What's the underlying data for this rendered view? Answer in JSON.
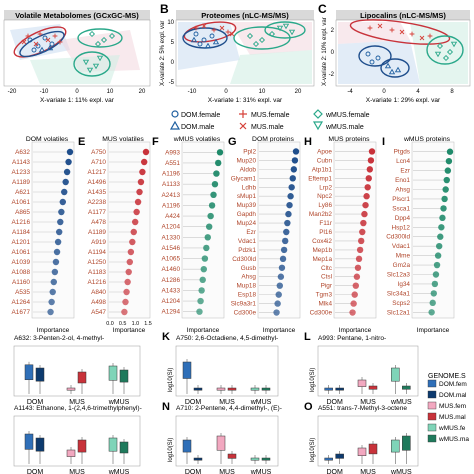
{
  "figure": {
    "panel_letters": [
      "B",
      "C",
      "E",
      "F",
      "G",
      "H",
      "I",
      "K",
      "L",
      "N",
      "O"
    ],
    "xlabel_importance": "Importance",
    "ylabel_si": "log10(SI)"
  },
  "pca_panels": [
    {
      "id": "A",
      "title": "Volatile Metabolomes (GCxGC-MS)",
      "xlabel": "X-variate 1: 11% expl. var",
      "ylabel": "",
      "xticks": [
        "-20",
        "-10",
        "0",
        "10",
        "20"
      ],
      "yticks": []
    },
    {
      "id": "B",
      "title": "Proteomes (nLC-MS/MS)",
      "xlabel": "X-variate 1: 31% expl. var",
      "ylabel": "X-variate 2: 5% expl. var",
      "xticks": [
        "-10",
        "0",
        "10",
        "20"
      ],
      "yticks": [
        "-5",
        "0",
        "5",
        "10"
      ]
    },
    {
      "id": "C",
      "title": "Lipocalins (nLC-MS/MS)",
      "xlabel": "X-variate 1: 29% expl. var",
      "ylabel": "X-variate 2: 10% expl. var",
      "xticks": [
        "-4",
        "0",
        "4",
        "8"
      ],
      "yticks": [
        "-2",
        "0",
        "2"
      ]
    }
  ],
  "legend_groups": [
    {
      "label": "DOM.female",
      "symbol": "circle",
      "color": "#1f5fa0"
    },
    {
      "label": "DOM.male",
      "symbol": "triangle",
      "color": "#1f5fa0"
    },
    {
      "label": "MUS.female",
      "symbol": "plus",
      "color": "#d6423a"
    },
    {
      "label": "MUS.male",
      "symbol": "x",
      "color": "#d6423a"
    },
    {
      "label": "wMUS.female",
      "symbol": "diamond",
      "color": "#2aa88a"
    },
    {
      "label": "wMUS.male",
      "symbol": "triangle-down",
      "color": "#2aa88a"
    }
  ],
  "chart_data": [
    {
      "type": "scatter",
      "panel": "D",
      "title": "DOM volatiles",
      "color": "#1f4e8c",
      "xlabel": "Importance",
      "xticks": [],
      "labels": [
        "A632",
        "A1143",
        "A1233",
        "A1189",
        "A621",
        "A1061",
        "A865",
        "A1216",
        "A1184",
        "A1201",
        "A1061",
        "A1039",
        "A1088",
        "A1160",
        "A535",
        "A1264",
        "A1677"
      ],
      "values": [
        1.0,
        0.96,
        0.92,
        0.88,
        0.84,
        0.8,
        0.76,
        0.73,
        0.7,
        0.67,
        0.64,
        0.61,
        0.58,
        0.55,
        0.52,
        0.49,
        0.46
      ]
    },
    {
      "type": "scatter",
      "panel": "E",
      "title": "MUS volatiles",
      "color": "#c8323a",
      "xlabel": "Importance",
      "xticks": [
        "0.0",
        "0.5",
        "1.0",
        "1.5"
      ],
      "labels": [
        "A750",
        "A710",
        "A1217",
        "A1496",
        "A1435",
        "A2238",
        "A1177",
        "A478",
        "A1189",
        "A919",
        "A1194",
        "A1250",
        "A1183",
        "A1216",
        "A840",
        "A498",
        "A547"
      ],
      "values": [
        1.0,
        0.95,
        0.9,
        0.86,
        0.82,
        0.78,
        0.74,
        0.7,
        0.66,
        0.62,
        0.58,
        0.55,
        0.52,
        0.49,
        0.46,
        0.43,
        0.4
      ]
    },
    {
      "type": "scatter",
      "panel": "F",
      "title": "wMUS volatiles",
      "color": "#1f8a6a",
      "xlabel": "Importance",
      "xticks": [],
      "labels": [
        "A993",
        "A551",
        "A1196",
        "A1133",
        "A2413",
        "A1196",
        "A424",
        "A1204",
        "A1330",
        "A1546",
        "A1065",
        "A1460",
        "A1286",
        "A1433",
        "A1204",
        "A1294"
      ],
      "values": [
        1.0,
        0.95,
        0.9,
        0.86,
        0.82,
        0.78,
        0.74,
        0.7,
        0.66,
        0.62,
        0.58,
        0.55,
        0.52,
        0.49,
        0.46,
        0.43
      ]
    },
    {
      "type": "scatter",
      "panel": "G",
      "title": "DOM proteins",
      "color": "#1f4e8c",
      "xlabel": "Importance",
      "xticks": [],
      "labels": [
        "Ppl2",
        "Mup20",
        "Aldob",
        "Glycam1",
        "Ldhb",
        "sMup1",
        "Mup39",
        "Gapdh",
        "Mup24",
        "Ezr",
        "Vdac1",
        "Pdzk1",
        "Cd300ld",
        "Gusb",
        "Ahsg",
        "Mup18",
        "Esp18",
        "Slc9a3r1",
        "Cd300e"
      ],
      "values": [
        1.0,
        0.97,
        0.94,
        0.91,
        0.88,
        0.85,
        0.82,
        0.79,
        0.76,
        0.73,
        0.7,
        0.67,
        0.64,
        0.61,
        0.58,
        0.55,
        0.52,
        0.49,
        0.46
      ]
    },
    {
      "type": "scatter",
      "panel": "H",
      "title": "MUS proteins",
      "color": "#c8323a",
      "xlabel": "Importance",
      "xticks": [],
      "labels": [
        "Apoe",
        "Cubn",
        "Atp1b1",
        "Eftemp1",
        "Lrp2",
        "Npc2",
        "Ly86",
        "Man2b2",
        "F11r",
        "Pl16",
        "Cox4i2",
        "Mep1b",
        "Mep1a",
        "Cltc",
        "Ctsl",
        "Pigr",
        "Tgm3",
        "Mlk4",
        "Cd300e"
      ],
      "values": [
        1.0,
        0.97,
        0.94,
        0.91,
        0.88,
        0.85,
        0.82,
        0.79,
        0.76,
        0.73,
        0.7,
        0.67,
        0.64,
        0.61,
        0.58,
        0.55,
        0.52,
        0.49,
        0.46
      ]
    },
    {
      "type": "scatter",
      "panel": "I",
      "title": "wMUS proteins",
      "color": "#1f8a6a",
      "xlabel": "Importance",
      "xticks": [],
      "labels": [
        "Ptgds",
        "Lcn4",
        "Ezr",
        "Eno1",
        "Ahsg",
        "Plscr1",
        "Ssca1",
        "Dpp4",
        "Hsp12",
        "Cd300ld",
        "Vdac1",
        "Mme",
        "Gm2a",
        "Slc12a3",
        "Ig34",
        "Slc34a1",
        "Scps2",
        "Slc12a1"
      ],
      "values": [
        1.0,
        0.97,
        0.94,
        0.91,
        0.88,
        0.85,
        0.82,
        0.79,
        0.76,
        0.73,
        0.7,
        0.67,
        0.64,
        0.61,
        0.58,
        0.55,
        0.52,
        0.49
      ]
    },
    {
      "type": "box",
      "panel": "J",
      "title": "A632: 3-Penten-2-ol, 4-methyl-",
      "categories": [
        "DOM",
        "MUS",
        "wMUS"
      ],
      "series": [
        {
          "name": "DOM.female",
          "values": [
            0.68
          ]
        },
        {
          "name": "DOM.male",
          "values": [
            0.6
          ]
        },
        {
          "name": "MUS.female",
          "values": [
            0.1
          ]
        },
        {
          "name": "MUS.male",
          "values": [
            0.5
          ]
        },
        {
          "name": "wMUS.female",
          "values": [
            0.65
          ]
        },
        {
          "name": "wMUS.male",
          "values": [
            0.55
          ]
        }
      ]
    },
    {
      "type": "box",
      "panel": "K",
      "title": "A750: 2,6-Octadiene, 4,5-dimethyl-",
      "categories": [
        "DOM",
        "MUS",
        "wMUS"
      ],
      "series": [
        {
          "name": "DOM.female",
          "values": [
            0.75
          ]
        },
        {
          "name": "DOM.male",
          "values": [
            0.1
          ]
        },
        {
          "name": "MUS.female",
          "values": [
            0.1
          ]
        },
        {
          "name": "MUS.male",
          "values": [
            0.1
          ]
        },
        {
          "name": "wMUS.female",
          "values": [
            0.1
          ]
        },
        {
          "name": "wMUS.male",
          "values": [
            0.1
          ]
        }
      ]
    },
    {
      "type": "box",
      "panel": "L",
      "title": "A993: Pentane, 1-nitro-",
      "categories": [
        "DOM",
        "MUS",
        "wMUS"
      ],
      "series": [
        {
          "name": "DOM.female",
          "values": [
            0.1
          ]
        },
        {
          "name": "DOM.male",
          "values": [
            0.1
          ]
        },
        {
          "name": "MUS.female",
          "values": [
            0.3
          ]
        },
        {
          "name": "MUS.male",
          "values": [
            0.15
          ]
        },
        {
          "name": "wMUS.female",
          "values": [
            0.6
          ]
        },
        {
          "name": "wMUS.male",
          "values": [
            0.15
          ]
        }
      ]
    },
    {
      "type": "box",
      "panel": "M",
      "title": "A1143: Ethanone, 1-(2,4,6-trimethylphenyl)-",
      "categories": [
        "DOM",
        "MUS",
        "wMUS"
      ],
      "series": [
        {
          "name": "DOM.female",
          "values": [
            0.7
          ]
        },
        {
          "name": "DOM.male",
          "values": [
            0.6
          ]
        },
        {
          "name": "MUS.female",
          "values": [
            0.3
          ]
        },
        {
          "name": "MUS.male",
          "values": [
            0.55
          ]
        },
        {
          "name": "wMUS.female",
          "values": [
            0.6
          ]
        },
        {
          "name": "wMUS.male",
          "values": [
            0.5
          ]
        }
      ]
    },
    {
      "type": "box",
      "panel": "N",
      "title": "A710: 2-Pentene, 4,4-dimethyl-, (E)-",
      "categories": [
        "DOM",
        "MUS",
        "wMUS"
      ],
      "series": [
        {
          "name": "DOM.female",
          "values": [
            0.55
          ]
        },
        {
          "name": "DOM.male",
          "values": [
            0.1
          ]
        },
        {
          "name": "MUS.female",
          "values": [
            0.65
          ]
        },
        {
          "name": "MUS.male",
          "values": [
            0.2
          ]
        },
        {
          "name": "wMUS.female",
          "values": [
            0.1
          ]
        },
        {
          "name": "wMUS.male",
          "values": [
            0.1
          ]
        }
      ]
    },
    {
      "type": "box",
      "panel": "O",
      "title": "A551: trans-7-Methyl-3-octene",
      "categories": [
        "DOM",
        "MUS",
        "wMUS"
      ],
      "series": [
        {
          "name": "DOM.female",
          "values": [
            0.1
          ]
        },
        {
          "name": "DOM.male",
          "values": [
            0.2
          ]
        },
        {
          "name": "MUS.female",
          "values": [
            0.35
          ]
        },
        {
          "name": "MUS.male",
          "values": [
            0.45
          ]
        },
        {
          "name": "wMUS.female",
          "values": [
            0.55
          ]
        },
        {
          "name": "wMUS.male",
          "values": [
            0.65
          ]
        }
      ]
    }
  ],
  "genome_legend": {
    "title": "GENOME.S",
    "items": [
      "DOM.fem",
      "DOM.mal",
      "MUS.fem",
      "MUS.mal",
      "wMUS.fe",
      "wMUS.ma"
    ],
    "colors": [
      "#2f6fb8",
      "#0d3a6e",
      "#f2a8c0",
      "#c8323a",
      "#7fd4b8",
      "#1f7a5c"
    ]
  }
}
